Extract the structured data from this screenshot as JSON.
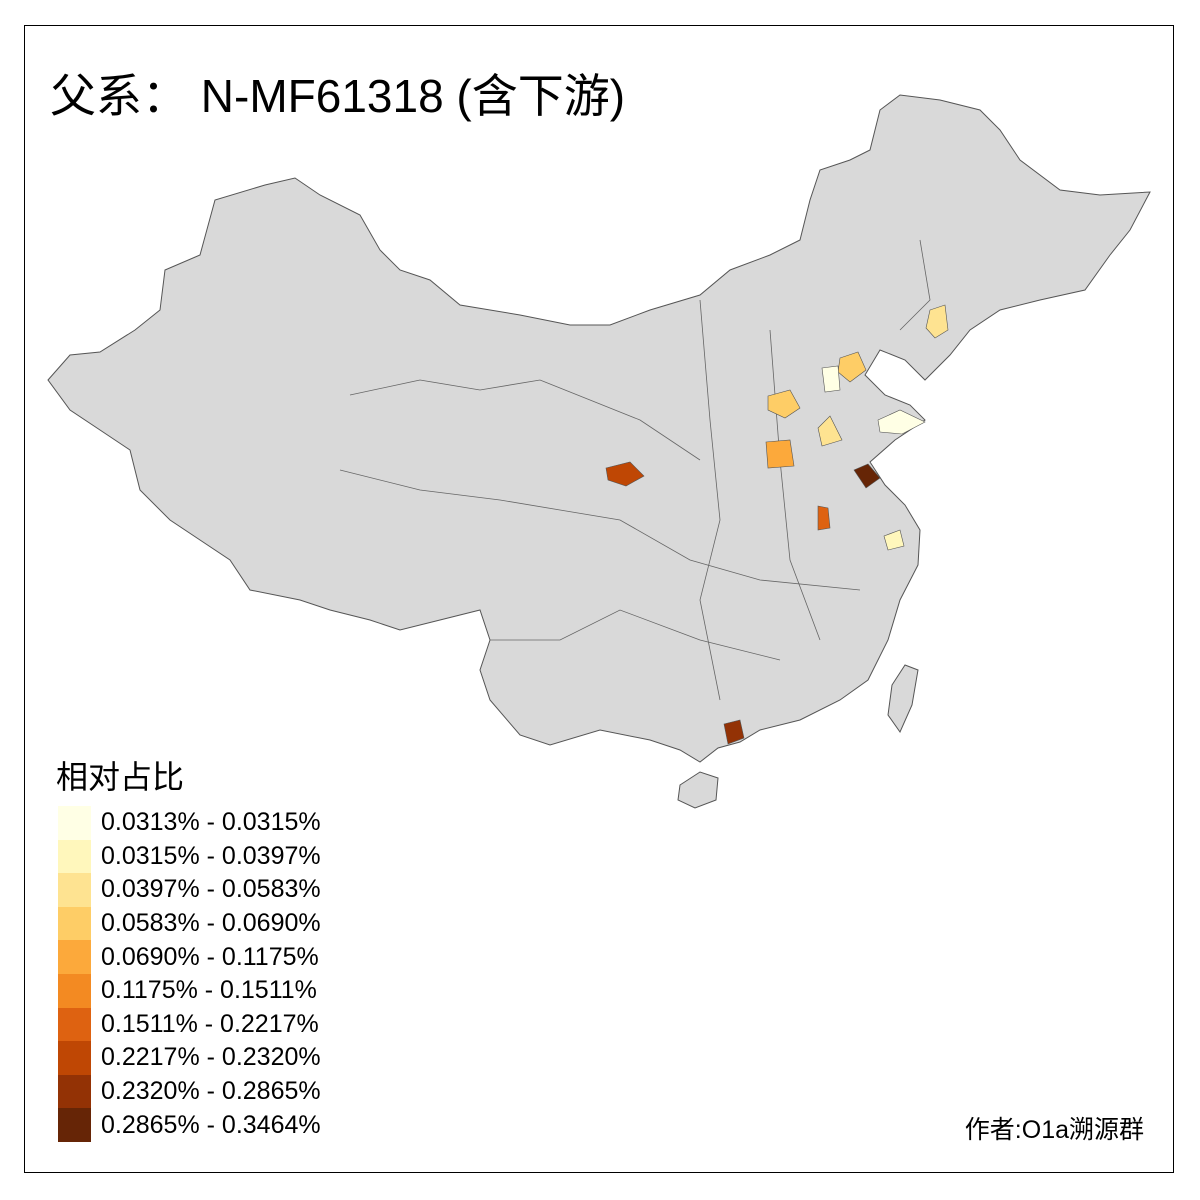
{
  "title": "父系： N-MF61318 (含下游)",
  "legend": {
    "title": "相对占比",
    "items": [
      {
        "label": "0.0313% - 0.0315%",
        "color": "#FFFFE5"
      },
      {
        "label": "0.0315% - 0.0397%",
        "color": "#FFF7BC"
      },
      {
        "label": "0.0397% - 0.0583%",
        "color": "#FEE391"
      },
      {
        "label": "0.0583% - 0.0690%",
        "color": "#FECD66"
      },
      {
        "label": "0.0690% - 0.1175%",
        "color": "#FCA93B"
      },
      {
        "label": "0.1175% - 0.1511%",
        "color": "#F38A22"
      },
      {
        "label": "0.1511% - 0.2217%",
        "color": "#DE6211"
      },
      {
        "label": "0.2217% - 0.2320%",
        "color": "#BF4704"
      },
      {
        "label": "0.2320% - 0.2865%",
        "color": "#933205"
      },
      {
        "label": "0.2865% - 0.3464%",
        "color": "#662506"
      }
    ]
  },
  "map": {
    "base_color": "#D9D9D9",
    "border_color": "#555555"
  },
  "author": "作者:O1a溯源群"
}
